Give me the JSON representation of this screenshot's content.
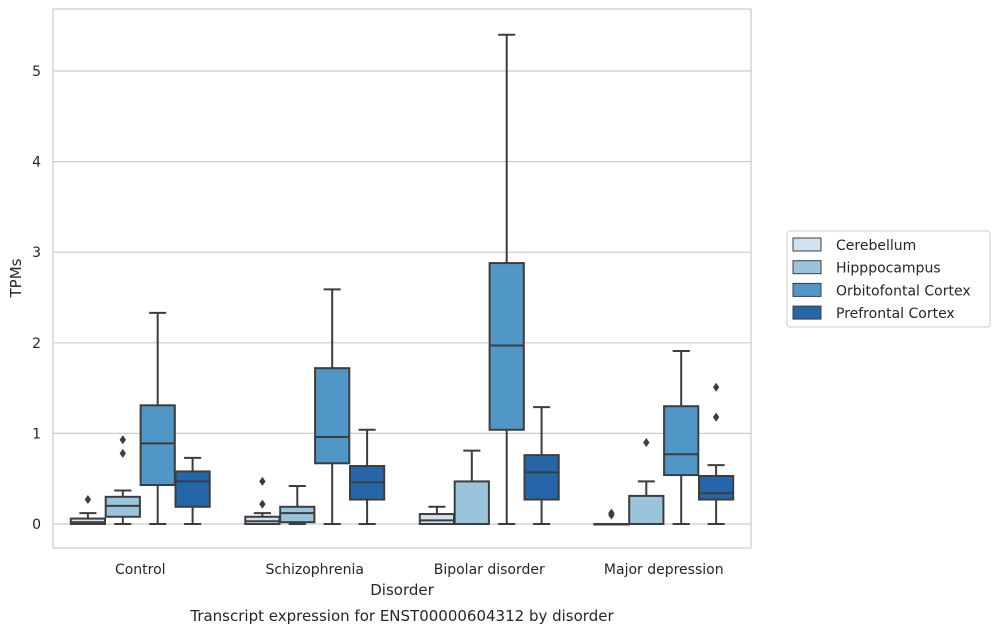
{
  "chart_data": {
    "type": "boxplot",
    "caption": "Transcript expression for ENST00000604312 by disorder",
    "xlabel": "Disorder",
    "ylabel": "TPMs",
    "ylim": [
      -0.27,
      5.68
    ],
    "yticks": [
      0,
      1,
      2,
      3,
      4,
      5
    ],
    "grid": "horizontal",
    "legend_position": "right",
    "categories": [
      "Control",
      "Schizophrenia",
      "Bipolar disorder",
      "Major depression"
    ],
    "series": [
      {
        "name": "Cerebellum",
        "color": "#d1e3f2",
        "boxes": [
          {
            "whislo": 0.0,
            "q1": 0.0,
            "med": 0.02,
            "q3": 0.06,
            "whishi": 0.12,
            "fliers": [
              0.27
            ]
          },
          {
            "whislo": 0.0,
            "q1": 0.0,
            "med": 0.03,
            "q3": 0.08,
            "whishi": 0.12,
            "fliers": [
              0.22,
              0.47
            ]
          },
          {
            "whislo": 0.0,
            "q1": 0.0,
            "med": 0.04,
            "q3": 0.11,
            "whishi": 0.19,
            "fliers": []
          },
          {
            "whislo": 0.0,
            "q1": 0.0,
            "med": 0.0,
            "q3": 0.0,
            "whishi": 0.0,
            "fliers": [
              0.1,
              0.12
            ]
          }
        ]
      },
      {
        "name": "Hipppocampus",
        "color": "#9ac3dc",
        "boxes": [
          {
            "whislo": 0.0,
            "q1": 0.08,
            "med": 0.2,
            "q3": 0.3,
            "whishi": 0.37,
            "fliers": [
              0.78,
              0.93
            ]
          },
          {
            "whislo": 0.0,
            "q1": 0.02,
            "med": 0.12,
            "q3": 0.19,
            "whishi": 0.42,
            "fliers": []
          },
          {
            "whislo": 0.0,
            "q1": 0.0,
            "med": 0.0,
            "q3": 0.47,
            "whishi": 0.81,
            "fliers": []
          },
          {
            "whislo": 0.0,
            "q1": 0.0,
            "med": 0.0,
            "q3": 0.31,
            "whishi": 0.47,
            "fliers": [
              0.9
            ]
          }
        ]
      },
      {
        "name": "Orbitofontal Cortex",
        "color": "#5096c6",
        "boxes": [
          {
            "whislo": 0.0,
            "q1": 0.43,
            "med": 0.89,
            "q3": 1.31,
            "whishi": 2.33,
            "fliers": []
          },
          {
            "whislo": 0.0,
            "q1": 0.67,
            "med": 0.96,
            "q3": 1.72,
            "whishi": 2.59,
            "fliers": []
          },
          {
            "whislo": 0.0,
            "q1": 1.04,
            "med": 1.97,
            "q3": 2.88,
            "whishi": 5.4,
            "fliers": []
          },
          {
            "whislo": 0.0,
            "q1": 0.54,
            "med": 0.77,
            "q3": 1.3,
            "whishi": 1.91,
            "fliers": []
          }
        ]
      },
      {
        "name": "Prefrontal Cortex",
        "color": "#2466a8",
        "boxes": [
          {
            "whislo": 0.0,
            "q1": 0.19,
            "med": 0.47,
            "q3": 0.58,
            "whishi": 0.73,
            "fliers": []
          },
          {
            "whislo": 0.0,
            "q1": 0.27,
            "med": 0.46,
            "q3": 0.64,
            "whishi": 1.04,
            "fliers": []
          },
          {
            "whislo": 0.0,
            "q1": 0.27,
            "med": 0.57,
            "q3": 0.76,
            "whishi": 1.29,
            "fliers": []
          },
          {
            "whislo": 0.0,
            "q1": 0.27,
            "med": 0.34,
            "q3": 0.53,
            "whishi": 0.65,
            "fliers": [
              1.18,
              1.51
            ]
          }
        ]
      }
    ]
  }
}
